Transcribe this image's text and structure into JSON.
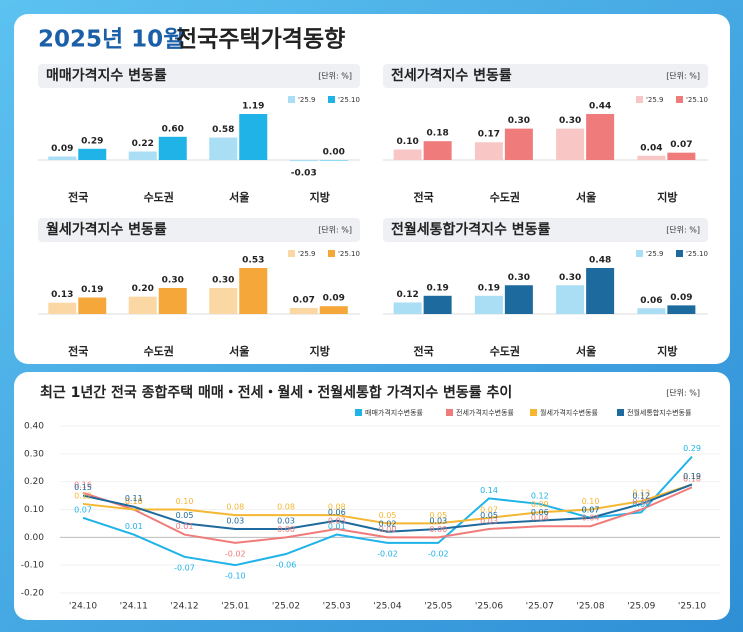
{
  "header": {
    "date": "2025년 10월",
    "title": "전국주택가격동향"
  },
  "chart_data": [
    {
      "type": "bar",
      "title": "매매가격지수 변동률",
      "unit": "[단위: %]",
      "categories": [
        "전국",
        "수도권",
        "서울",
        "지방"
      ],
      "series": [
        {
          "name": "'25.9",
          "color": "#a9def5",
          "values": [
            0.09,
            0.22,
            0.58,
            -0.03
          ],
          "value_labels": [
            "0.09",
            "0.22",
            "0.58",
            "-0.03"
          ]
        },
        {
          "name": "'25.10",
          "color": "#1fb3e8",
          "values": [
            0.29,
            0.6,
            1.19,
            0
          ],
          "value_labels": [
            "0.29",
            "0.60",
            "1.19",
            "0.00"
          ]
        }
      ]
    },
    {
      "type": "bar",
      "title": "전세가격지수 변동률",
      "unit": "[단위: %]",
      "categories": [
        "전국",
        "수도권",
        "서울",
        "지방"
      ],
      "series": [
        {
          "name": "'25.9",
          "color": "#f9c6c6",
          "values": [
            0.1,
            0.17,
            0.3,
            0.04
          ],
          "value_labels": [
            "0.10",
            "0.17",
            "0.30",
            "0.04"
          ]
        },
        {
          "name": "'25.10",
          "color": "#f07b7b",
          "values": [
            0.18,
            0.3,
            0.44,
            0.07
          ],
          "value_labels": [
            "0.18",
            "0.30",
            "0.44",
            "0.07"
          ]
        }
      ]
    },
    {
      "type": "bar",
      "title": "월세가격지수 변동률",
      "unit": "[단위: %]",
      "categories": [
        "전국",
        "수도권",
        "서울",
        "지방"
      ],
      "series": [
        {
          "name": "'25.9",
          "color": "#fbd7a4",
          "values": [
            0.13,
            0.2,
            0.3,
            0.07
          ],
          "value_labels": [
            "0.13",
            "0.20",
            "0.30",
            "0.07"
          ]
        },
        {
          "name": "'25.10",
          "color": "#f5a73a",
          "values": [
            0.19,
            0.3,
            0.53,
            0.09
          ],
          "value_labels": [
            "0.19",
            "0.30",
            "0.53",
            "0.09"
          ]
        }
      ]
    },
    {
      "type": "bar",
      "title": "전월세통합가격지수 변동률",
      "unit": "[단위: %]",
      "categories": [
        "전국",
        "수도권",
        "서울",
        "지방"
      ],
      "series": [
        {
          "name": "'25.9",
          "color": "#a9def5",
          "values": [
            0.12,
            0.19,
            0.3,
            0.06
          ],
          "value_labels": [
            "0.12",
            "0.19",
            "0.30",
            "0.06"
          ]
        },
        {
          "name": "'25.10",
          "color": "#1d6a9e",
          "values": [
            0.19,
            0.3,
            0.48,
            0.09
          ],
          "value_labels": [
            "0.19",
            "0.30",
            "0.48",
            "0.09"
          ]
        }
      ]
    },
    {
      "type": "line",
      "title": "최근 1년간 전국 종합주택 매매・전세・월세・전월세통합 가격지수 변동률 추이",
      "unit": "[단위: %]",
      "categories": [
        "'24.10",
        "'24.11",
        "'24.12",
        "'25.01",
        "'25.02",
        "'25.03",
        "'25.04",
        "'25.05",
        "'25.06",
        "'25.07",
        "'25.08",
        "'25.09",
        "'25.10"
      ],
      "ylim": [
        -0.2,
        0.4
      ],
      "yticks": [
        {
          "value": -0.2,
          "label": "-0.20"
        },
        {
          "value": -0.1,
          "label": "-0.10"
        },
        {
          "value": 0,
          "label": "0.00"
        },
        {
          "value": 0.1,
          "label": "0.10"
        },
        {
          "value": 0.2,
          "label": "0.20"
        },
        {
          "value": 0.3,
          "label": "0.30"
        },
        {
          "value": 0.4,
          "label": "0.40"
        }
      ],
      "series": [
        {
          "name": "매매가격지수변동률",
          "color": "#1fb3e8",
          "values": [
            0.07,
            0.01,
            -0.07,
            -0.1,
            -0.06,
            0.01,
            -0.02,
            -0.02,
            0.14,
            0.12,
            0.07,
            0.09,
            0.29
          ],
          "value_labels": [
            "0.07",
            "0.01",
            "-0.07",
            "-0.10",
            "-0.06",
            "0.01",
            "-0.02",
            "-0.02",
            "0.14",
            "0.12",
            "0.07",
            "0.09",
            "0.29"
          ]
        },
        {
          "name": "전세가격지수변동률",
          "color": "#f07b7b",
          "values": [
            0.16,
            0.1,
            0.01,
            -0.02,
            0,
            0.03,
            0,
            0,
            0.03,
            0.04,
            0.04,
            0.1,
            0.18
          ],
          "value_labels": [
            "0.16",
            "0.10",
            "0.01",
            "-0.02",
            "0.00",
            "0.03",
            "0.00",
            "0.00",
            "0.03",
            "0.04",
            "0.04",
            "0.10",
            "0.18"
          ]
        },
        {
          "name": "월세가격지수변동률",
          "color": "#f5b731",
          "values": [
            0.12,
            0.1,
            0.1,
            0.08,
            0.08,
            0.08,
            0.05,
            0.05,
            0.07,
            0.09,
            0.1,
            0.13,
            0.19
          ],
          "value_labels": [
            "0.12",
            "0.10",
            "0.10",
            "0.08",
            "0.08",
            "0.08",
            "0.05",
            "0.05",
            "0.07",
            "0.09",
            "0.10",
            "0.13",
            "0.19"
          ]
        },
        {
          "name": "전월세통합지수변동률",
          "color": "#1d6a9e",
          "values": [
            0.15,
            0.11,
            0.05,
            0.03,
            0.03,
            0.06,
            0.02,
            0.03,
            0.05,
            0.06,
            0.07,
            0.12,
            0.19
          ],
          "value_labels": [
            "0.15",
            "0.11",
            "0.05",
            "0.03",
            "0.03",
            "0.06",
            "0.02",
            "0.03",
            "0.05",
            "0.06",
            "0.07",
            "0.12",
            "0.19"
          ]
        }
      ]
    }
  ]
}
